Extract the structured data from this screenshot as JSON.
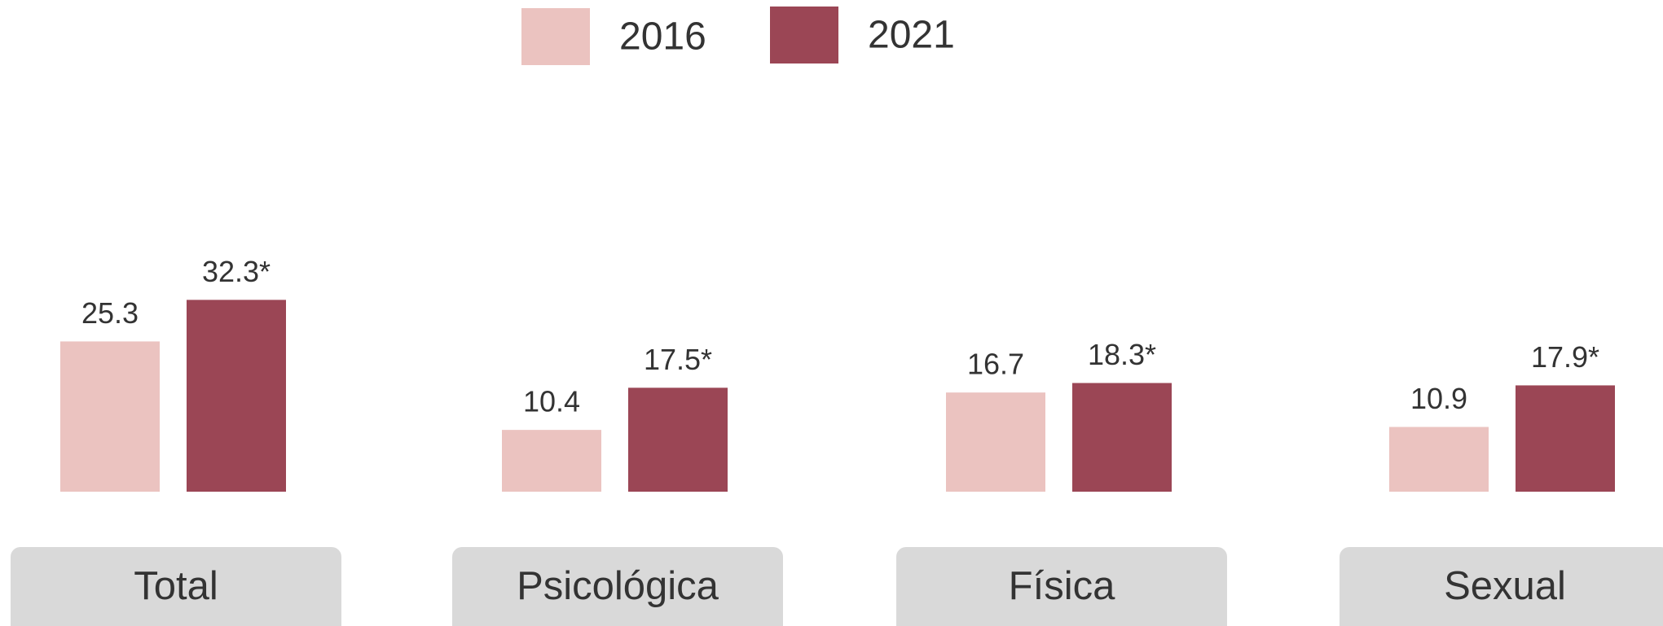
{
  "chart_data": {
    "type": "bar",
    "categories": [
      "Total",
      "Psicológica",
      "Física",
      "Sexual"
    ],
    "series": [
      {
        "name": "2016",
        "color": "#ebc3c0",
        "values": [
          25.3,
          10.4,
          16.7,
          10.9
        ]
      },
      {
        "name": "2021",
        "color": "#9b4655",
        "values": [
          32.3,
          17.5,
          18.3,
          17.9
        ],
        "value_labels": [
          "32.3*",
          "17.5*",
          "18.3*",
          "17.9*"
        ]
      }
    ]
  }
}
